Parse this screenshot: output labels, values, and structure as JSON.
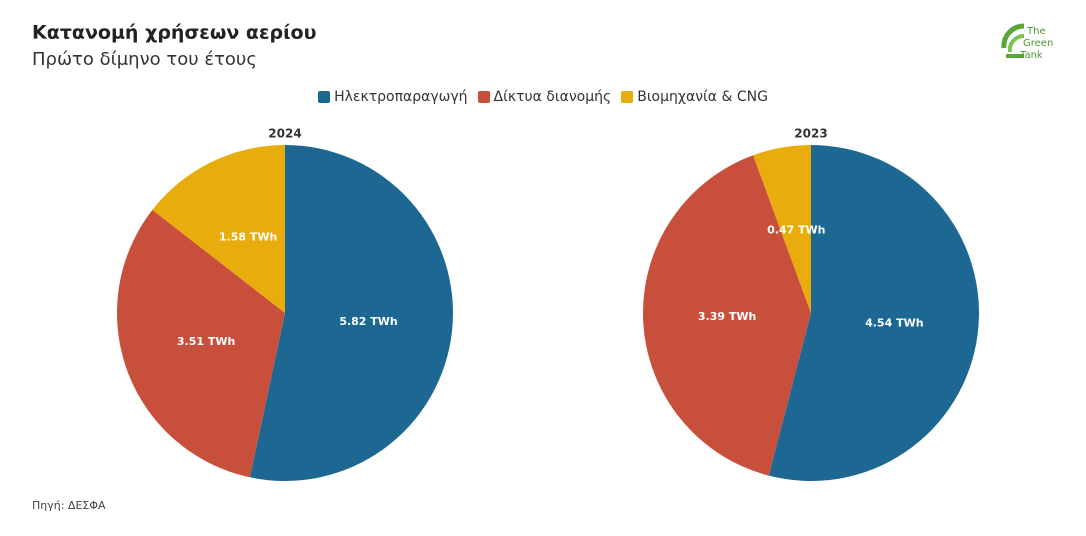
{
  "title": "Κατανομή χρήσεων αερίου",
  "subtitle": "Πρώτο δίμηνο του έτους",
  "source": "Πηγή: ΔΕΣΦΑ",
  "logo": [
    "The",
    "Green",
    "Tank"
  ],
  "chart_data": [
    {
      "type": "pie",
      "title": "2024",
      "categories": [
        "Ηλεκτροπαραγωγή",
        "Δίκτυα διανομής",
        "Βιομηχανία & CNG"
      ],
      "values": [
        5.82,
        3.51,
        1.58
      ],
      "value_labels": [
        "5.82 TWh",
        "3.51 TWh",
        "1.58 TWh"
      ],
      "colors": [
        "#1c6893",
        "#c94f3d",
        "#e8ad0c"
      ]
    },
    {
      "type": "pie",
      "title": "2023",
      "categories": [
        "Ηλεκτροπαραγωγή",
        "Δίκτυα διανομής",
        "Βιομηχανία & CNG"
      ],
      "values": [
        4.54,
        3.39,
        0.47
      ],
      "value_labels": [
        "4.54 TWh",
        "3.39 TWh",
        "0.47 TWh"
      ],
      "colors": [
        "#1c6893",
        "#c94f3d",
        "#e8ad0c"
      ]
    }
  ]
}
